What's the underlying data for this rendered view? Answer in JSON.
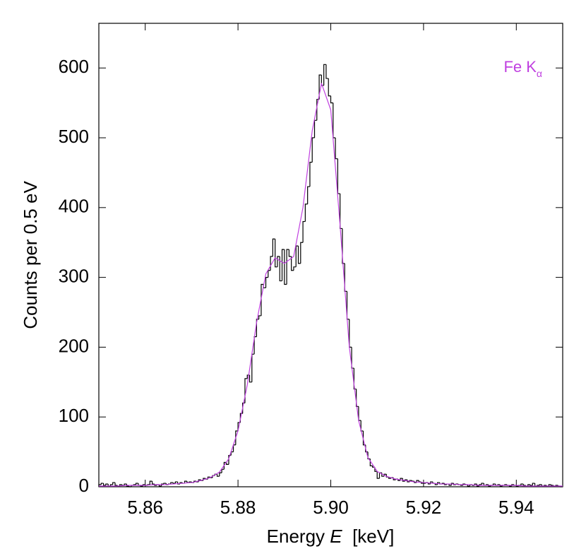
{
  "chart_data": {
    "type": "histogram",
    "ylabel": "Counts per 0.5 eV",
    "xlabel": [
      "Energy ",
      "E",
      "  [keV]"
    ],
    "annotation": {
      "text": "Fe K",
      "subscript": "α",
      "color": "#c040e0"
    },
    "xlim": [
      5.85,
      5.95
    ],
    "xticks": [
      5.86,
      5.88,
      {
        "value": 5.9,
        "label": "5.90"
      },
      5.92,
      5.94
    ],
    "ylim": [
      0,
      664
    ],
    "yticks": [
      0,
      100,
      200,
      300,
      400,
      500,
      600
    ],
    "color": "#000000",
    "bins": [
      5.85,
      5.8505,
      5.851,
      5.8515,
      5.852,
      5.8525,
      5.853,
      5.8535,
      5.854,
      5.8545,
      5.855,
      5.8555,
      5.856,
      5.8565,
      5.857,
      5.8575,
      5.858,
      5.8585,
      5.859,
      5.8595,
      5.86,
      5.8605,
      5.861,
      5.8615,
      5.862,
      5.8625,
      5.863,
      5.8635,
      5.864,
      5.8645,
      5.865,
      5.8655,
      5.866,
      5.8665,
      5.867,
      5.8675,
      5.868,
      5.8685,
      5.869,
      5.8695,
      5.87,
      5.8705,
      5.871,
      5.8715,
      5.872,
      5.8725,
      5.873,
      5.8735,
      5.874,
      5.8745,
      5.875,
      5.8755,
      5.876,
      5.8765,
      5.877,
      5.8775,
      5.878,
      5.8785,
      5.879,
      5.8795,
      5.88,
      5.8805,
      5.881,
      5.8815,
      5.882,
      5.8825,
      5.883,
      5.8835,
      5.884,
      5.8845,
      5.885,
      5.8855,
      5.886,
      5.8865,
      5.887,
      5.8875,
      5.888,
      5.8885,
      5.889,
      5.8895,
      5.89,
      5.8905,
      5.891,
      5.8915,
      5.892,
      5.8925,
      5.893,
      5.8935,
      5.894,
      5.8945,
      5.895,
      5.8955,
      5.896,
      5.8965,
      5.897,
      5.8975,
      5.898,
      5.8985,
      5.899,
      5.8995,
      5.9,
      5.9005,
      5.901,
      5.9015,
      5.902,
      5.9025,
      5.903,
      5.9035,
      5.904,
      5.9045,
      5.905,
      5.9055,
      5.906,
      5.9065,
      5.907,
      5.9075,
      5.908,
      5.9085,
      5.909,
      5.9095,
      5.91,
      5.9105,
      5.911,
      5.9115,
      5.912,
      5.9125,
      5.913,
      5.9135,
      5.914,
      5.9145,
      5.915,
      5.9155,
      5.916,
      5.9165,
      5.917,
      5.9175,
      5.918,
      5.9185,
      5.919,
      5.9195,
      5.92,
      5.9205,
      5.921,
      5.9215,
      5.922,
      5.9225,
      5.923,
      5.9235,
      5.924,
      5.9245,
      5.925,
      5.9255,
      5.926,
      5.9265,
      5.927,
      5.9275,
      5.928,
      5.9285,
      5.929,
      5.9295,
      5.93,
      5.9305,
      5.931,
      5.9315,
      5.932,
      5.9325,
      5.933,
      5.9335,
      5.934,
      5.9345,
      5.935,
      5.9355,
      5.936,
      5.9365,
      5.937,
      5.9375,
      5.938,
      5.9385,
      5.939,
      5.9395,
      5.94,
      5.9405,
      5.941,
      5.9415,
      5.942,
      5.9425,
      5.943,
      5.9435,
      5.944,
      5.9445,
      5.945,
      5.9455,
      5.946,
      5.9465,
      5.947,
      5.9475,
      5.948,
      5.9485,
      5.949,
      5.9495,
      5.95
    ],
    "values": [
      3,
      5,
      2,
      4,
      1,
      3,
      6,
      2,
      1,
      3,
      2,
      4,
      1,
      0,
      2,
      3,
      5,
      2,
      1,
      3,
      2,
      3,
      8,
      4,
      2,
      3,
      1,
      4,
      5,
      3,
      4,
      6,
      5,
      7,
      4,
      6,
      5,
      8,
      6,
      7,
      6,
      8,
      7,
      10,
      9,
      12,
      11,
      14,
      13,
      16,
      18,
      15,
      20,
      25,
      35,
      32,
      45,
      50,
      60,
      80,
      92,
      105,
      120,
      155,
      160,
      150,
      190,
      215,
      240,
      245,
      290,
      285,
      300,
      310,
      330,
      355,
      315,
      330,
      295,
      340,
      290,
      340,
      330,
      310,
      315,
      345,
      320,
      350,
      380,
      405,
      430,
      465,
      500,
      525,
      555,
      590,
      575,
      605,
      585,
      560,
      550,
      500,
      470,
      420,
      370,
      320,
      280,
      240,
      200,
      170,
      140,
      115,
      95,
      80,
      60,
      50,
      40,
      30,
      28,
      22,
      12,
      20,
      15,
      18,
      14,
      12,
      13,
      10,
      11,
      9,
      12,
      8,
      10,
      7,
      9,
      8,
      6,
      9,
      7,
      5,
      5,
      6,
      4,
      7,
      5,
      3,
      6,
      4,
      5,
      3,
      4,
      2,
      5,
      3,
      4,
      3,
      2,
      4,
      3,
      1,
      3,
      2,
      4,
      1,
      3,
      5,
      2,
      3,
      1,
      2,
      4,
      2,
      3,
      1,
      2,
      3,
      2,
      1,
      3,
      2,
      1,
      2,
      4,
      2,
      1,
      3,
      2,
      5,
      1,
      2,
      3,
      1,
      2,
      1,
      3,
      2,
      1,
      2,
      1,
      0
    ],
    "fit": {
      "color": "#c040e0",
      "x": [
        5.85,
        5.852,
        5.854,
        5.856,
        5.858,
        5.86,
        5.862,
        5.864,
        5.866,
        5.868,
        5.87,
        5.872,
        5.874,
        5.876,
        5.878,
        5.88,
        5.882,
        5.884,
        5.886,
        5.888,
        5.89,
        5.892,
        5.894,
        5.896,
        5.898,
        5.9,
        5.902,
        5.904,
        5.906,
        5.908,
        5.91,
        5.912,
        5.914,
        5.916,
        5.918,
        5.92,
        5.922,
        5.924,
        5.926,
        5.928,
        5.93,
        5.932,
        5.934,
        5.936,
        5.938,
        5.94,
        5.942,
        5.944,
        5.946,
        5.948,
        5.95
      ],
      "values": [
        1,
        1,
        1,
        2,
        2,
        2,
        3,
        3,
        4,
        5,
        6,
        9,
        13,
        21,
        40,
        80,
        146,
        235,
        305,
        328,
        320,
        330,
        400,
        510,
        578,
        540,
        375,
        200,
        95,
        42,
        22,
        15,
        11,
        9,
        7,
        6,
        5,
        4,
        4,
        3,
        3,
        2,
        2,
        2,
        2,
        2,
        1,
        1,
        1,
        1,
        1
      ]
    }
  }
}
